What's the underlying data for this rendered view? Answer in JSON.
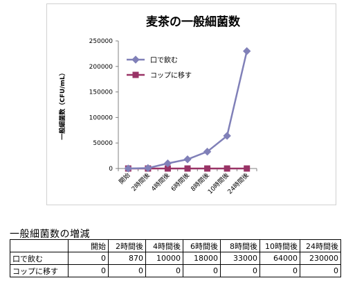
{
  "chart_data": {
    "type": "line",
    "title": "麦茶の一般細菌数",
    "xlabel": "",
    "ylabel": "一般細菌数（CFU/mL）",
    "categories": [
      "開始",
      "2時間後",
      "4時間後",
      "6時間後",
      "8時間後",
      "10時間後",
      "24時間後"
    ],
    "series": [
      {
        "name": "口で飲む",
        "values": [
          0,
          870,
          10000,
          18000,
          33000,
          64000,
          230000
        ],
        "color": "#8080b8",
        "marker": "diamond"
      },
      {
        "name": "コップに移す",
        "values": [
          0,
          0,
          0,
          0,
          0,
          0,
          0
        ],
        "color": "#993366",
        "marker": "square"
      }
    ],
    "ylim": [
      0,
      250000
    ],
    "yticks": [
      0,
      50000,
      100000,
      150000,
      200000,
      250000
    ],
    "grid": false,
    "legend": "top-left"
  },
  "table": {
    "caption": "一般細菌数の増減",
    "columns": [
      "",
      "開始",
      "2時間後",
      "4時間後",
      "6時間後",
      "8時間後",
      "10時間後",
      "24時間後"
    ],
    "rows": [
      {
        "label": "口で飲む",
        "cells": [
          "0",
          "870",
          "10000",
          "18000",
          "33000",
          "64000",
          "230000"
        ]
      },
      {
        "label": "コップに移す",
        "cells": [
          "0",
          "0",
          "0",
          "0",
          "0",
          "0",
          "0"
        ]
      }
    ]
  }
}
